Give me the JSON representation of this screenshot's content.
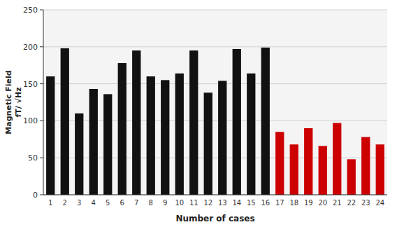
{
  "chart_data": {
    "type": "bar",
    "categories": [
      "1",
      "2",
      "3",
      "4",
      "5",
      "6",
      "7",
      "8",
      "9",
      "10",
      "11",
      "12",
      "13",
      "14",
      "15",
      "16",
      "17",
      "18",
      "19",
      "20",
      "21",
      "22",
      "23",
      "24"
    ],
    "values": [
      160,
      198,
      110,
      143,
      136,
      178,
      195,
      160,
      155,
      164,
      195,
      138,
      154,
      197,
      164,
      199,
      85,
      68,
      90,
      66,
      97,
      48,
      78,
      68
    ],
    "colors": [
      "#111111",
      "#111111",
      "#111111",
      "#111111",
      "#111111",
      "#111111",
      "#111111",
      "#111111",
      "#111111",
      "#111111",
      "#111111",
      "#111111",
      "#111111",
      "#111111",
      "#111111",
      "#111111",
      "#cc0000",
      "#cc0000",
      "#cc0000",
      "#cc0000",
      "#cc0000",
      "#cc0000",
      "#cc0000",
      "#cc0000"
    ],
    "x_label": "Number of cases",
    "y_label": "Magnetic Field\nfT/ √Hz",
    "ylim": [
      0,
      250
    ],
    "yticks": [
      0,
      50,
      100,
      150,
      200,
      250
    ],
    "grid": true
  }
}
